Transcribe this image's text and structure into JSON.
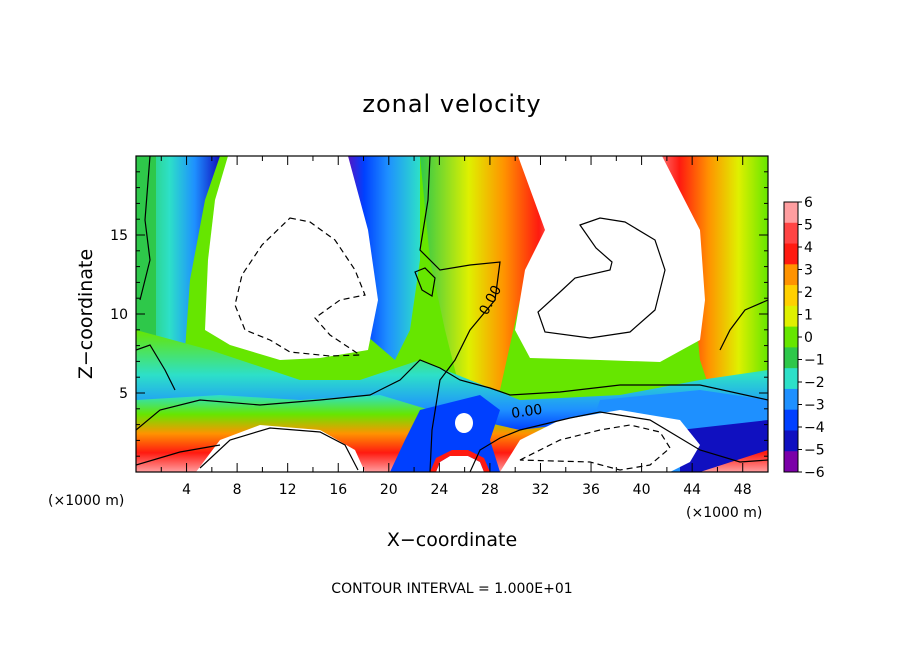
{
  "chart_data": {
    "type": "heatmap",
    "title": "zonal velocity",
    "xlabel": "X−coordinate",
    "ylabel": "Z−coordinate",
    "x_scale_note": "(×1000 m)",
    "y_scale_note": "(×1000 m)",
    "xlim": [
      0,
      50
    ],
    "ylim": [
      0,
      20
    ],
    "x_ticks": [
      "4",
      "8",
      "12",
      "16",
      "20",
      "24",
      "28",
      "32",
      "36",
      "40",
      "44",
      "48"
    ],
    "x_tick_values": [
      4,
      8,
      12,
      16,
      20,
      24,
      28,
      32,
      36,
      40,
      44,
      48
    ],
    "y_ticks": [
      "5",
      "10",
      "15"
    ],
    "y_tick_values": [
      5,
      10,
      15
    ],
    "colorbar": {
      "ticks": [
        "6",
        "5",
        "4",
        "3",
        "2",
        "1",
        "0",
        "−1",
        "−2",
        "−3",
        "−4",
        "−5",
        "−6"
      ],
      "range": [
        -6,
        6
      ],
      "colors": [
        "#ff9ea0",
        "#ff4444",
        "#ff1a10",
        "#ff9300",
        "#ffd000",
        "#dff000",
        "#66e600",
        "#2ec84a",
        "#2de0c8",
        "#1e90ff",
        "#0040ff",
        "#1010c0",
        "#7b00a8"
      ]
    },
    "contour_labels": [
      "0.00",
      "0.00"
    ],
    "grid": false,
    "legend": "colorbar at right",
    "footnote": "CONTOUR INTERVAL = 1.000E+01"
  }
}
